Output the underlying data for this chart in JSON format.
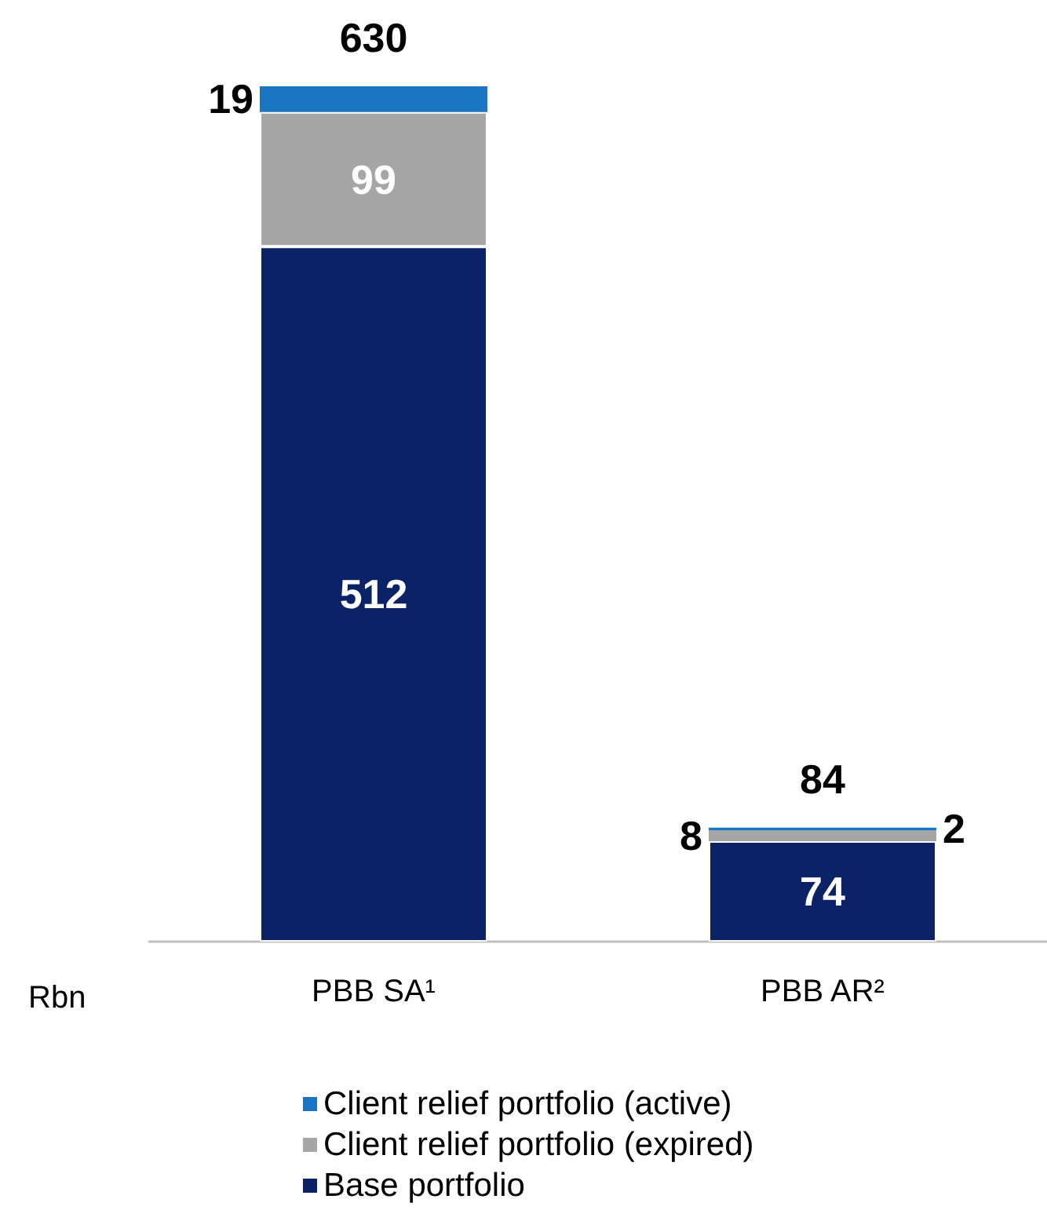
{
  "chart_data": {
    "type": "bar",
    "stacked": true,
    "ylabel": "Rbn",
    "categories": [
      "PBB SA¹",
      "PBB AR²"
    ],
    "series": [
      {
        "name": "Base portfolio",
        "color": "#0c2266",
        "values": [
          512,
          74
        ]
      },
      {
        "name": "Client relief portfolio (expired)",
        "color": "#a6a6a6",
        "values": [
          99,
          8
        ]
      },
      {
        "name": "Client relief portfolio (active)",
        "color": "#1a75c2",
        "values": [
          19,
          2
        ]
      }
    ],
    "totals": [
      "630",
      "84"
    ],
    "data_labels": true,
    "legend": "bottom"
  }
}
